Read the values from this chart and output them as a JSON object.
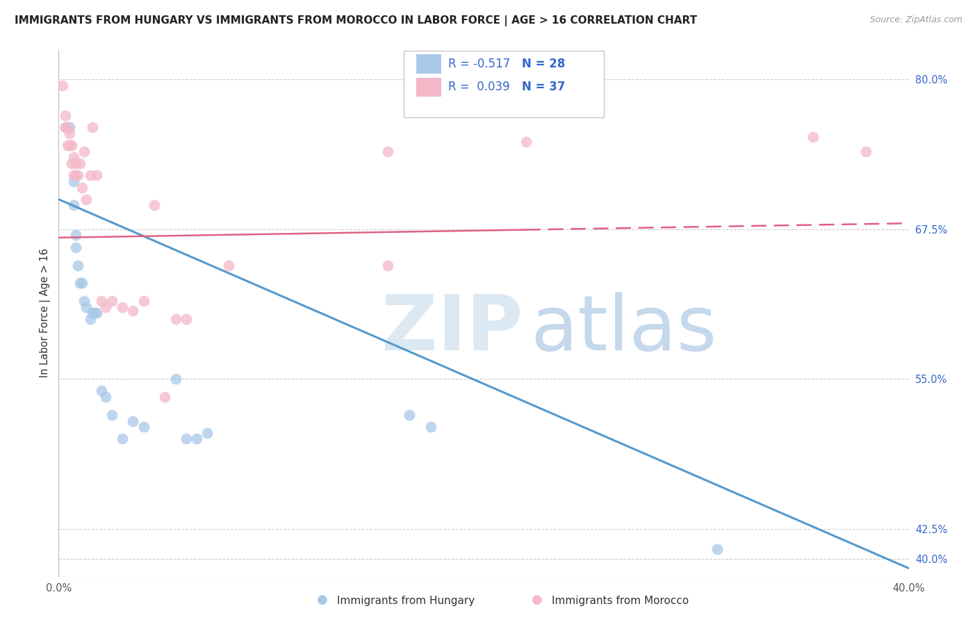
{
  "title": "IMMIGRANTS FROM HUNGARY VS IMMIGRANTS FROM MOROCCO IN LABOR FORCE | AGE > 16 CORRELATION CHART",
  "source": "Source: ZipAtlas.com",
  "ylabel": "In Labor Force | Age > 16",
  "xlim": [
    0.0,
    0.4
  ],
  "ylim": [
    0.385,
    0.825
  ],
  "yticks": [
    0.4,
    0.425,
    0.55,
    0.675,
    0.8
  ],
  "ytick_labels": [
    "40.0%",
    "42.5%",
    "55.0%",
    "67.5%",
    "80.0%"
  ],
  "xticks": [
    0.0,
    0.05,
    0.1,
    0.15,
    0.2,
    0.25,
    0.3,
    0.35,
    0.4
  ],
  "xtick_labels": [
    "0.0%",
    "",
    "",
    "",
    "",
    "",
    "",
    "",
    "40.0%"
  ],
  "background_color": "#ffffff",
  "hungary_scatter_color": "#a8c8e8",
  "morocco_scatter_color": "#f4b8c8",
  "hungary_line_color": "#5599cc",
  "morocco_line_color": "#e06080",
  "hungary_R": -0.517,
  "hungary_N": 28,
  "morocco_R": 0.039,
  "morocco_N": 37,
  "hungary_points_x": [
    0.003,
    0.005,
    0.007,
    0.007,
    0.008,
    0.008,
    0.009,
    0.01,
    0.011,
    0.012,
    0.013,
    0.015,
    0.016,
    0.017,
    0.018,
    0.02,
    0.022,
    0.025,
    0.03,
    0.035,
    0.04,
    0.055,
    0.06,
    0.065,
    0.07,
    0.165,
    0.175,
    0.31
  ],
  "hungary_points_y": [
    0.76,
    0.76,
    0.715,
    0.695,
    0.67,
    0.66,
    0.645,
    0.63,
    0.63,
    0.615,
    0.61,
    0.6,
    0.605,
    0.605,
    0.605,
    0.54,
    0.535,
    0.52,
    0.5,
    0.515,
    0.51,
    0.55,
    0.5,
    0.5,
    0.505,
    0.52,
    0.51,
    0.408
  ],
  "morocco_points_x": [
    0.002,
    0.003,
    0.003,
    0.004,
    0.004,
    0.005,
    0.005,
    0.006,
    0.006,
    0.007,
    0.007,
    0.008,
    0.008,
    0.009,
    0.01,
    0.011,
    0.012,
    0.013,
    0.015,
    0.016,
    0.018,
    0.02,
    0.022,
    0.025,
    0.03,
    0.035,
    0.04,
    0.045,
    0.05,
    0.055,
    0.06,
    0.08,
    0.155,
    0.155,
    0.22,
    0.355,
    0.38
  ],
  "morocco_points_y": [
    0.795,
    0.76,
    0.77,
    0.745,
    0.76,
    0.745,
    0.755,
    0.73,
    0.745,
    0.72,
    0.735,
    0.72,
    0.73,
    0.72,
    0.73,
    0.71,
    0.74,
    0.7,
    0.72,
    0.76,
    0.72,
    0.615,
    0.61,
    0.615,
    0.61,
    0.607,
    0.615,
    0.695,
    0.535,
    0.6,
    0.6,
    0.645,
    0.74,
    0.645,
    0.748,
    0.752,
    0.74
  ],
  "hungary_line_x0": 0.0,
  "hungary_line_y0": 0.7,
  "hungary_line_x1": 0.4,
  "hungary_line_y1": 0.392,
  "morocco_line_x0": 0.0,
  "morocco_line_y0": 0.668,
  "morocco_line_x1": 0.4,
  "morocco_line_y1": 0.68,
  "legend_label_color": "#3366cc",
  "ytick_color": "#3366cc",
  "bottom_legend_hungary": "Immigrants from Hungary",
  "bottom_legend_morocco": "Immigrants from Morocco"
}
